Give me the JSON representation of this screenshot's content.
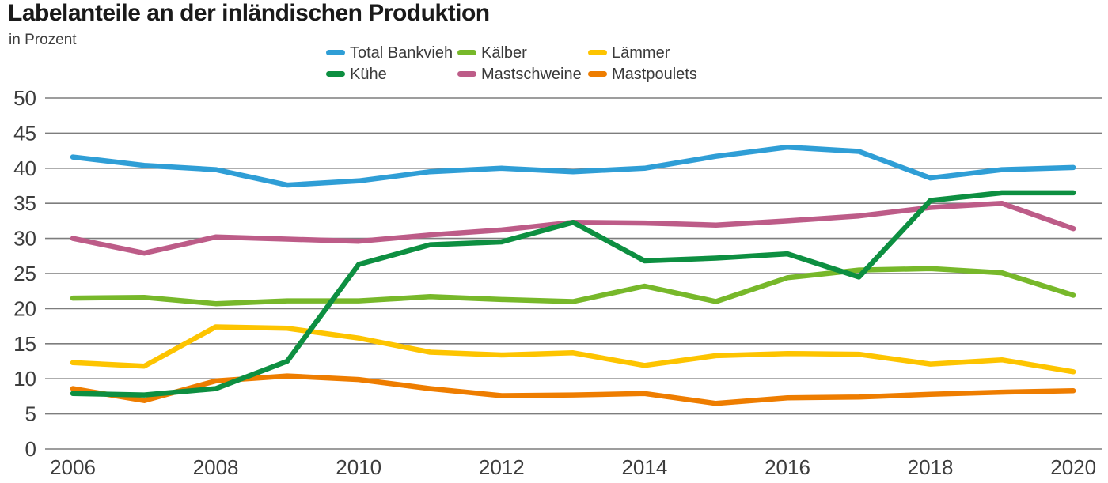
{
  "header": {
    "title": "Labelanteile an der inländischen Produktion",
    "subtitle": "in Prozent"
  },
  "legend": {
    "items": [
      {
        "label": "Total Bankvieh",
        "color": "#2f9ed6"
      },
      {
        "label": "Kälber",
        "color": "#77b82a"
      },
      {
        "label": "Lämmer",
        "color": "#fdc400"
      },
      {
        "label": "Kühe",
        "color": "#0d8f41"
      },
      {
        "label": "Mastschweine",
        "color": "#bd5c88"
      },
      {
        "label": "Mastpoulets",
        "color": "#ee7d00"
      }
    ]
  },
  "chart_data": {
    "type": "line",
    "title": "Labelanteile an der inländischen Produktion",
    "ylabel": "in Prozent",
    "x": [
      2006,
      2007,
      2008,
      2009,
      2010,
      2011,
      2012,
      2013,
      2014,
      2015,
      2016,
      2017,
      2018,
      2019,
      2020
    ],
    "series": [
      {
        "name": "Total Bankvieh",
        "color": "#2f9ed6",
        "values": [
          41.6,
          40.4,
          39.8,
          37.6,
          38.2,
          39.5,
          40.0,
          39.5,
          40.0,
          41.7,
          43.0,
          42.4,
          38.6,
          39.8,
          40.1
        ]
      },
      {
        "name": "Mastschweine",
        "color": "#bd5c88",
        "values": [
          30.0,
          27.9,
          30.2,
          29.9,
          29.6,
          30.5,
          31.2,
          32.3,
          32.2,
          31.9,
          32.5,
          33.2,
          34.4,
          35.0,
          31.4
        ]
      },
      {
        "name": "Lämmer",
        "color": "#fdc400",
        "values": [
          12.3,
          11.8,
          17.4,
          17.2,
          15.8,
          13.8,
          13.4,
          13.7,
          11.9,
          13.3,
          13.6,
          13.5,
          12.1,
          12.7,
          11.0
        ]
      },
      {
        "name": "Mastpoulets",
        "color": "#ee7d00",
        "values": [
          8.6,
          6.9,
          9.7,
          10.4,
          9.9,
          8.6,
          7.6,
          7.7,
          7.9,
          6.5,
          7.3,
          7.4,
          7.8,
          8.1,
          8.3
        ]
      },
      {
        "name": "Kälber",
        "color": "#77b82a",
        "values": [
          21.5,
          21.6,
          20.7,
          21.1,
          21.1,
          21.7,
          21.3,
          21.0,
          23.2,
          21.0,
          24.4,
          25.5,
          25.7,
          25.1,
          21.9
        ]
      },
      {
        "name": "Kühe",
        "color": "#0d8f41",
        "values": [
          7.9,
          7.7,
          8.6,
          12.5,
          26.3,
          29.1,
          29.5,
          32.3,
          26.8,
          27.2,
          27.8,
          24.5,
          35.4,
          36.5,
          36.5
        ]
      }
    ],
    "ylim": [
      0,
      50
    ],
    "ytick_step": 5,
    "yticks": [
      0,
      5,
      10,
      15,
      20,
      25,
      30,
      35,
      40,
      45,
      50
    ],
    "xticks": [
      2006,
      2008,
      2010,
      2012,
      2014,
      2016,
      2018,
      2020
    ],
    "grid": true,
    "legend_position": "top"
  },
  "style": {
    "grid_color": "#7d7d7d",
    "tick_label_color": "#3d3d3d",
    "line_width": 6.5
  }
}
